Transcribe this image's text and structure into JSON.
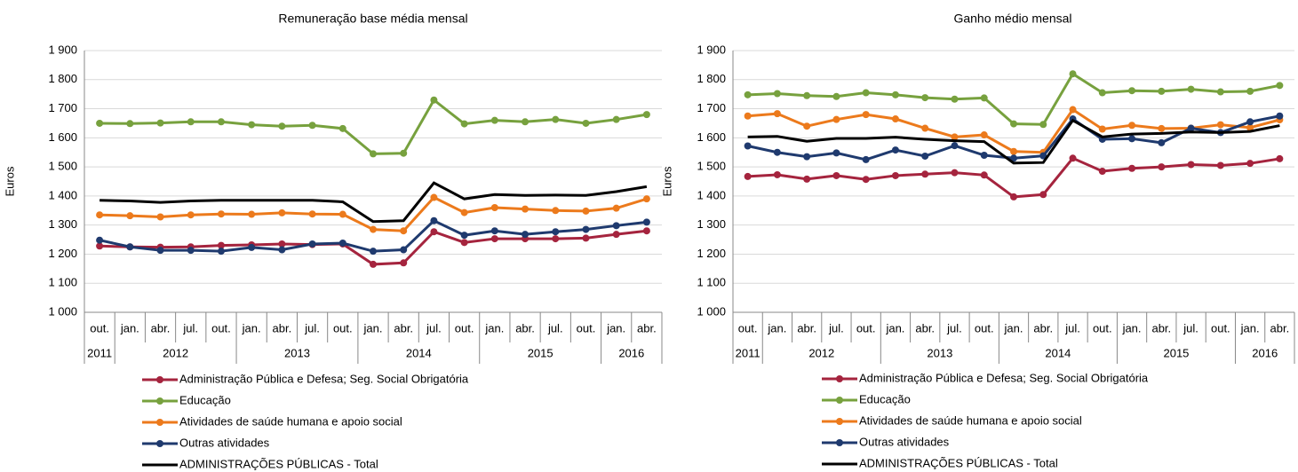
{
  "chart_data": [
    {
      "type": "line",
      "title": "Remuneração  base média mensal",
      "y_label": "Euros",
      "categories": [
        "out.",
        "jan.",
        "abr.",
        "jul.",
        "out.",
        "jan.",
        "abr.",
        "jul.",
        "out.",
        "jan.",
        "abr.",
        "jul.",
        "out.",
        "jan.",
        "abr.",
        "jul.",
        "out.",
        "jan.",
        "abr."
      ],
      "year_labels": [
        "2011",
        "2012",
        null,
        null,
        null,
        "2013",
        null,
        null,
        null,
        "2014",
        null,
        null,
        null,
        "2015",
        null,
        null,
        null,
        "2016",
        null
      ],
      "ylim": [
        1000,
        1900
      ],
      "yticks": [
        {
          "value": 1000,
          "label": "1 000"
        },
        {
          "value": 1100,
          "label": "1 100"
        },
        {
          "value": 1200,
          "label": "1 200"
        },
        {
          "value": 1300,
          "label": "1 300"
        },
        {
          "value": 1400,
          "label": "1 400"
        },
        {
          "value": 1500,
          "label": "1 500"
        },
        {
          "value": 1600,
          "label": "1 600"
        },
        {
          "value": 1700,
          "label": "1 700"
        },
        {
          "value": 1800,
          "label": "1 800"
        },
        {
          "value": 1900,
          "label": "1 900"
        }
      ],
      "grid": true,
      "series": [
        {
          "name": "Administração Pública e Defesa; Seg. Social Obrigatória",
          "color": "#a5243e",
          "marker": true,
          "values": [
            1228,
            1225,
            1224,
            1225,
            1230,
            1232,
            1235,
            1233,
            1235,
            1165,
            1170,
            1277,
            1240,
            1253,
            1253,
            1253,
            1255,
            1268,
            1280
          ]
        },
        {
          "name": "Educação",
          "color": "#77a13e",
          "marker": true,
          "values": [
            1650,
            1649,
            1651,
            1655,
            1655,
            1645,
            1640,
            1643,
            1632,
            1545,
            1547,
            1730,
            1648,
            1660,
            1655,
            1663,
            1650,
            1663,
            1680
          ]
        },
        {
          "name": "Atividades de saúde humana e apoio social",
          "color": "#ec7a1c",
          "marker": true,
          "values": [
            1335,
            1332,
            1328,
            1335,
            1338,
            1337,
            1342,
            1338,
            1337,
            1285,
            1280,
            1395,
            1343,
            1360,
            1355,
            1350,
            1348,
            1358,
            1390
          ]
        },
        {
          "name": "Outras atividades",
          "color": "#1f3a6e",
          "marker": true,
          "values": [
            1248,
            1225,
            1213,
            1213,
            1210,
            1223,
            1215,
            1235,
            1238,
            1210,
            1215,
            1315,
            1265,
            1280,
            1268,
            1277,
            1285,
            1298,
            1310
          ]
        },
        {
          "name": "ADMINISTRAÇÕES PÚBLICAS - Total",
          "color": "#000000",
          "marker": false,
          "values": [
            1385,
            1383,
            1378,
            1383,
            1385,
            1385,
            1385,
            1385,
            1380,
            1312,
            1315,
            1445,
            1390,
            1405,
            1402,
            1403,
            1402,
            1415,
            1432
          ]
        }
      ]
    },
    {
      "type": "line",
      "title": "Ganho médio mensal",
      "y_label": "Euros",
      "categories": [
        "out.",
        "jan.",
        "abr.",
        "jul.",
        "out.",
        "jan.",
        "abr.",
        "jul.",
        "out.",
        "jan.",
        "abr.",
        "jul.",
        "out.",
        "jan.",
        "abr.",
        "jul.",
        "out.",
        "jan.",
        "abr."
      ],
      "year_labels": [
        "2011",
        "2012",
        null,
        null,
        null,
        "2013",
        null,
        null,
        null,
        "2014",
        null,
        null,
        null,
        "2015",
        null,
        null,
        null,
        "2016",
        null
      ],
      "ylim": [
        1000,
        1900
      ],
      "yticks": [
        {
          "value": 1000,
          "label": "1 000"
        },
        {
          "value": 1100,
          "label": "1 100"
        },
        {
          "value": 1200,
          "label": "1 200"
        },
        {
          "value": 1300,
          "label": "1 300"
        },
        {
          "value": 1400,
          "label": "1 400"
        },
        {
          "value": 1500,
          "label": "1 500"
        },
        {
          "value": 1600,
          "label": "1 600"
        },
        {
          "value": 1700,
          "label": "1 700"
        },
        {
          "value": 1800,
          "label": "1 800"
        },
        {
          "value": 1900,
          "label": "1 900"
        }
      ],
      "grid": true,
      "series": [
        {
          "name": "Administração Pública e Defesa; Seg. Social Obrigatória",
          "color": "#a5243e",
          "marker": true,
          "values": [
            1467,
            1473,
            1458,
            1470,
            1457,
            1470,
            1475,
            1480,
            1472,
            1397,
            1405,
            1530,
            1485,
            1495,
            1500,
            1508,
            1505,
            1512,
            1528
          ]
        },
        {
          "name": "Educação",
          "color": "#77a13e",
          "marker": true,
          "values": [
            1748,
            1752,
            1745,
            1742,
            1755,
            1748,
            1738,
            1733,
            1737,
            1648,
            1646,
            1820,
            1755,
            1762,
            1760,
            1767,
            1758,
            1760,
            1780
          ]
        },
        {
          "name": "Atividades de saúde humana e apoio social",
          "color": "#ec7a1c",
          "marker": true,
          "values": [
            1675,
            1683,
            1640,
            1663,
            1680,
            1665,
            1633,
            1603,
            1610,
            1553,
            1550,
            1697,
            1630,
            1643,
            1632,
            1633,
            1645,
            1635,
            1662
          ]
        },
        {
          "name": "Outras atividades",
          "color": "#1f3a6e",
          "marker": true,
          "values": [
            1572,
            1550,
            1535,
            1548,
            1525,
            1558,
            1537,
            1573,
            1540,
            1530,
            1538,
            1665,
            1595,
            1597,
            1583,
            1633,
            1618,
            1655,
            1675
          ]
        },
        {
          "name": "ADMINISTRAÇÕES PÚBLICAS - Total",
          "color": "#000000",
          "marker": false,
          "values": [
            1603,
            1605,
            1588,
            1598,
            1598,
            1602,
            1595,
            1590,
            1587,
            1513,
            1515,
            1660,
            1603,
            1613,
            1615,
            1620,
            1618,
            1622,
            1642
          ]
        }
      ]
    }
  ]
}
